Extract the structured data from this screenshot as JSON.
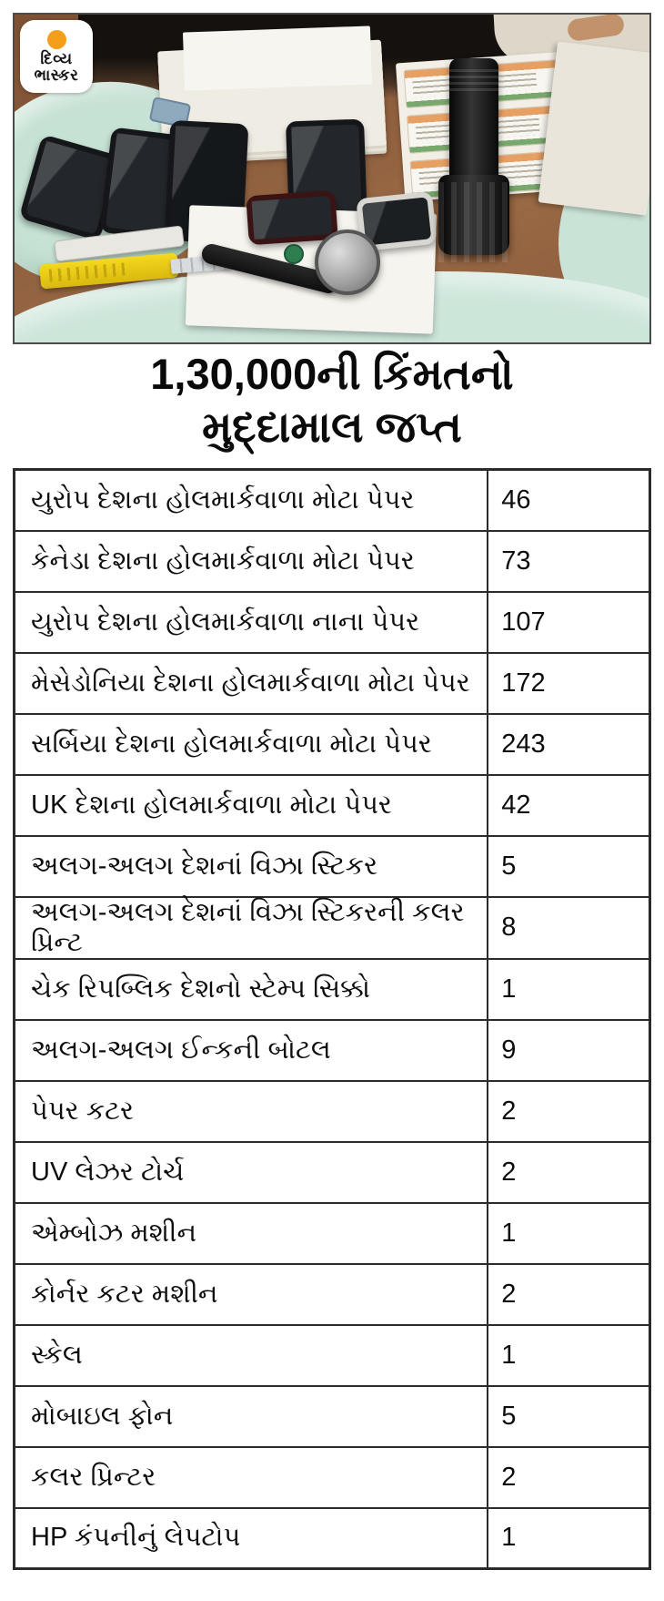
{
  "logo": {
    "line1": "દિવ્ય",
    "line2": "ભાસ્કર"
  },
  "title": {
    "line1": "1,30,000ની કિંમતનો",
    "line2": "મુદ્દામાલ જપ્ત"
  },
  "table": {
    "rows": [
      {
        "label": "યુરોપ દેશના હોલમાર્કવાળા મોટા પેપર",
        "value": "46"
      },
      {
        "label": "કેનેડા દેશના હોલમાર્કવાળા મોટા પેપર",
        "value": "73"
      },
      {
        "label": "યુરોપ દેશના હોલમાર્કવાળા નાના પેપર",
        "value": "107"
      },
      {
        "label": "મેસેડોનિયા દેશના હોલમાર્કવાળા મોટા પેપર",
        "value": "172"
      },
      {
        "label": "સર્બિયા દેશના હોલમાર્કવાળા મોટા પેપર",
        "value": "243"
      },
      {
        "label": "UK દેશના હોલમાર્કવાળા મોટા પેપર",
        "value": "42"
      },
      {
        "label": "અલગ-અલગ દેશનાં વિઝા સ્ટિકર",
        "value": "5"
      },
      {
        "label": "અલગ-અલગ દેશનાં વિઝા સ્ટિકરની કલર પ્રિન્ટ",
        "value": "8"
      },
      {
        "label": "ચેક રિપબ્લિક દેશનો સ્ટેમ્પ સિક્કો",
        "value": "1"
      },
      {
        "label": "અલગ-અલગ ઈન્કની બોટલ",
        "value": "9"
      },
      {
        "label": "પેપર કટર",
        "value": "2"
      },
      {
        "label": "UV લેઝર ટોર્ચ",
        "value": "2"
      },
      {
        "label": "એમ્બોઝ મશીન",
        "value": "1"
      },
      {
        "label": "કોર્નર કટર મશીન",
        "value": "2"
      },
      {
        "label": "સ્કેલ",
        "value": "1"
      },
      {
        "label": "મોબાઇલ ફોન",
        "value": "5"
      },
      {
        "label": "કલર પ્રિન્ટર",
        "value": "2"
      },
      {
        "label": "HP કંપનીનું લેપટોપ",
        "value": "1"
      }
    ]
  },
  "colors": {
    "background": "#FFFFFF",
    "text": "#0D0D0D",
    "table_border": "#2B2B2B",
    "logo_sun_orange": "#F59E1B",
    "wood_brown": "#8A5A3B",
    "cloth_mint_green": "#CDE6DA",
    "cutter_yellow": "#E9C912"
  }
}
